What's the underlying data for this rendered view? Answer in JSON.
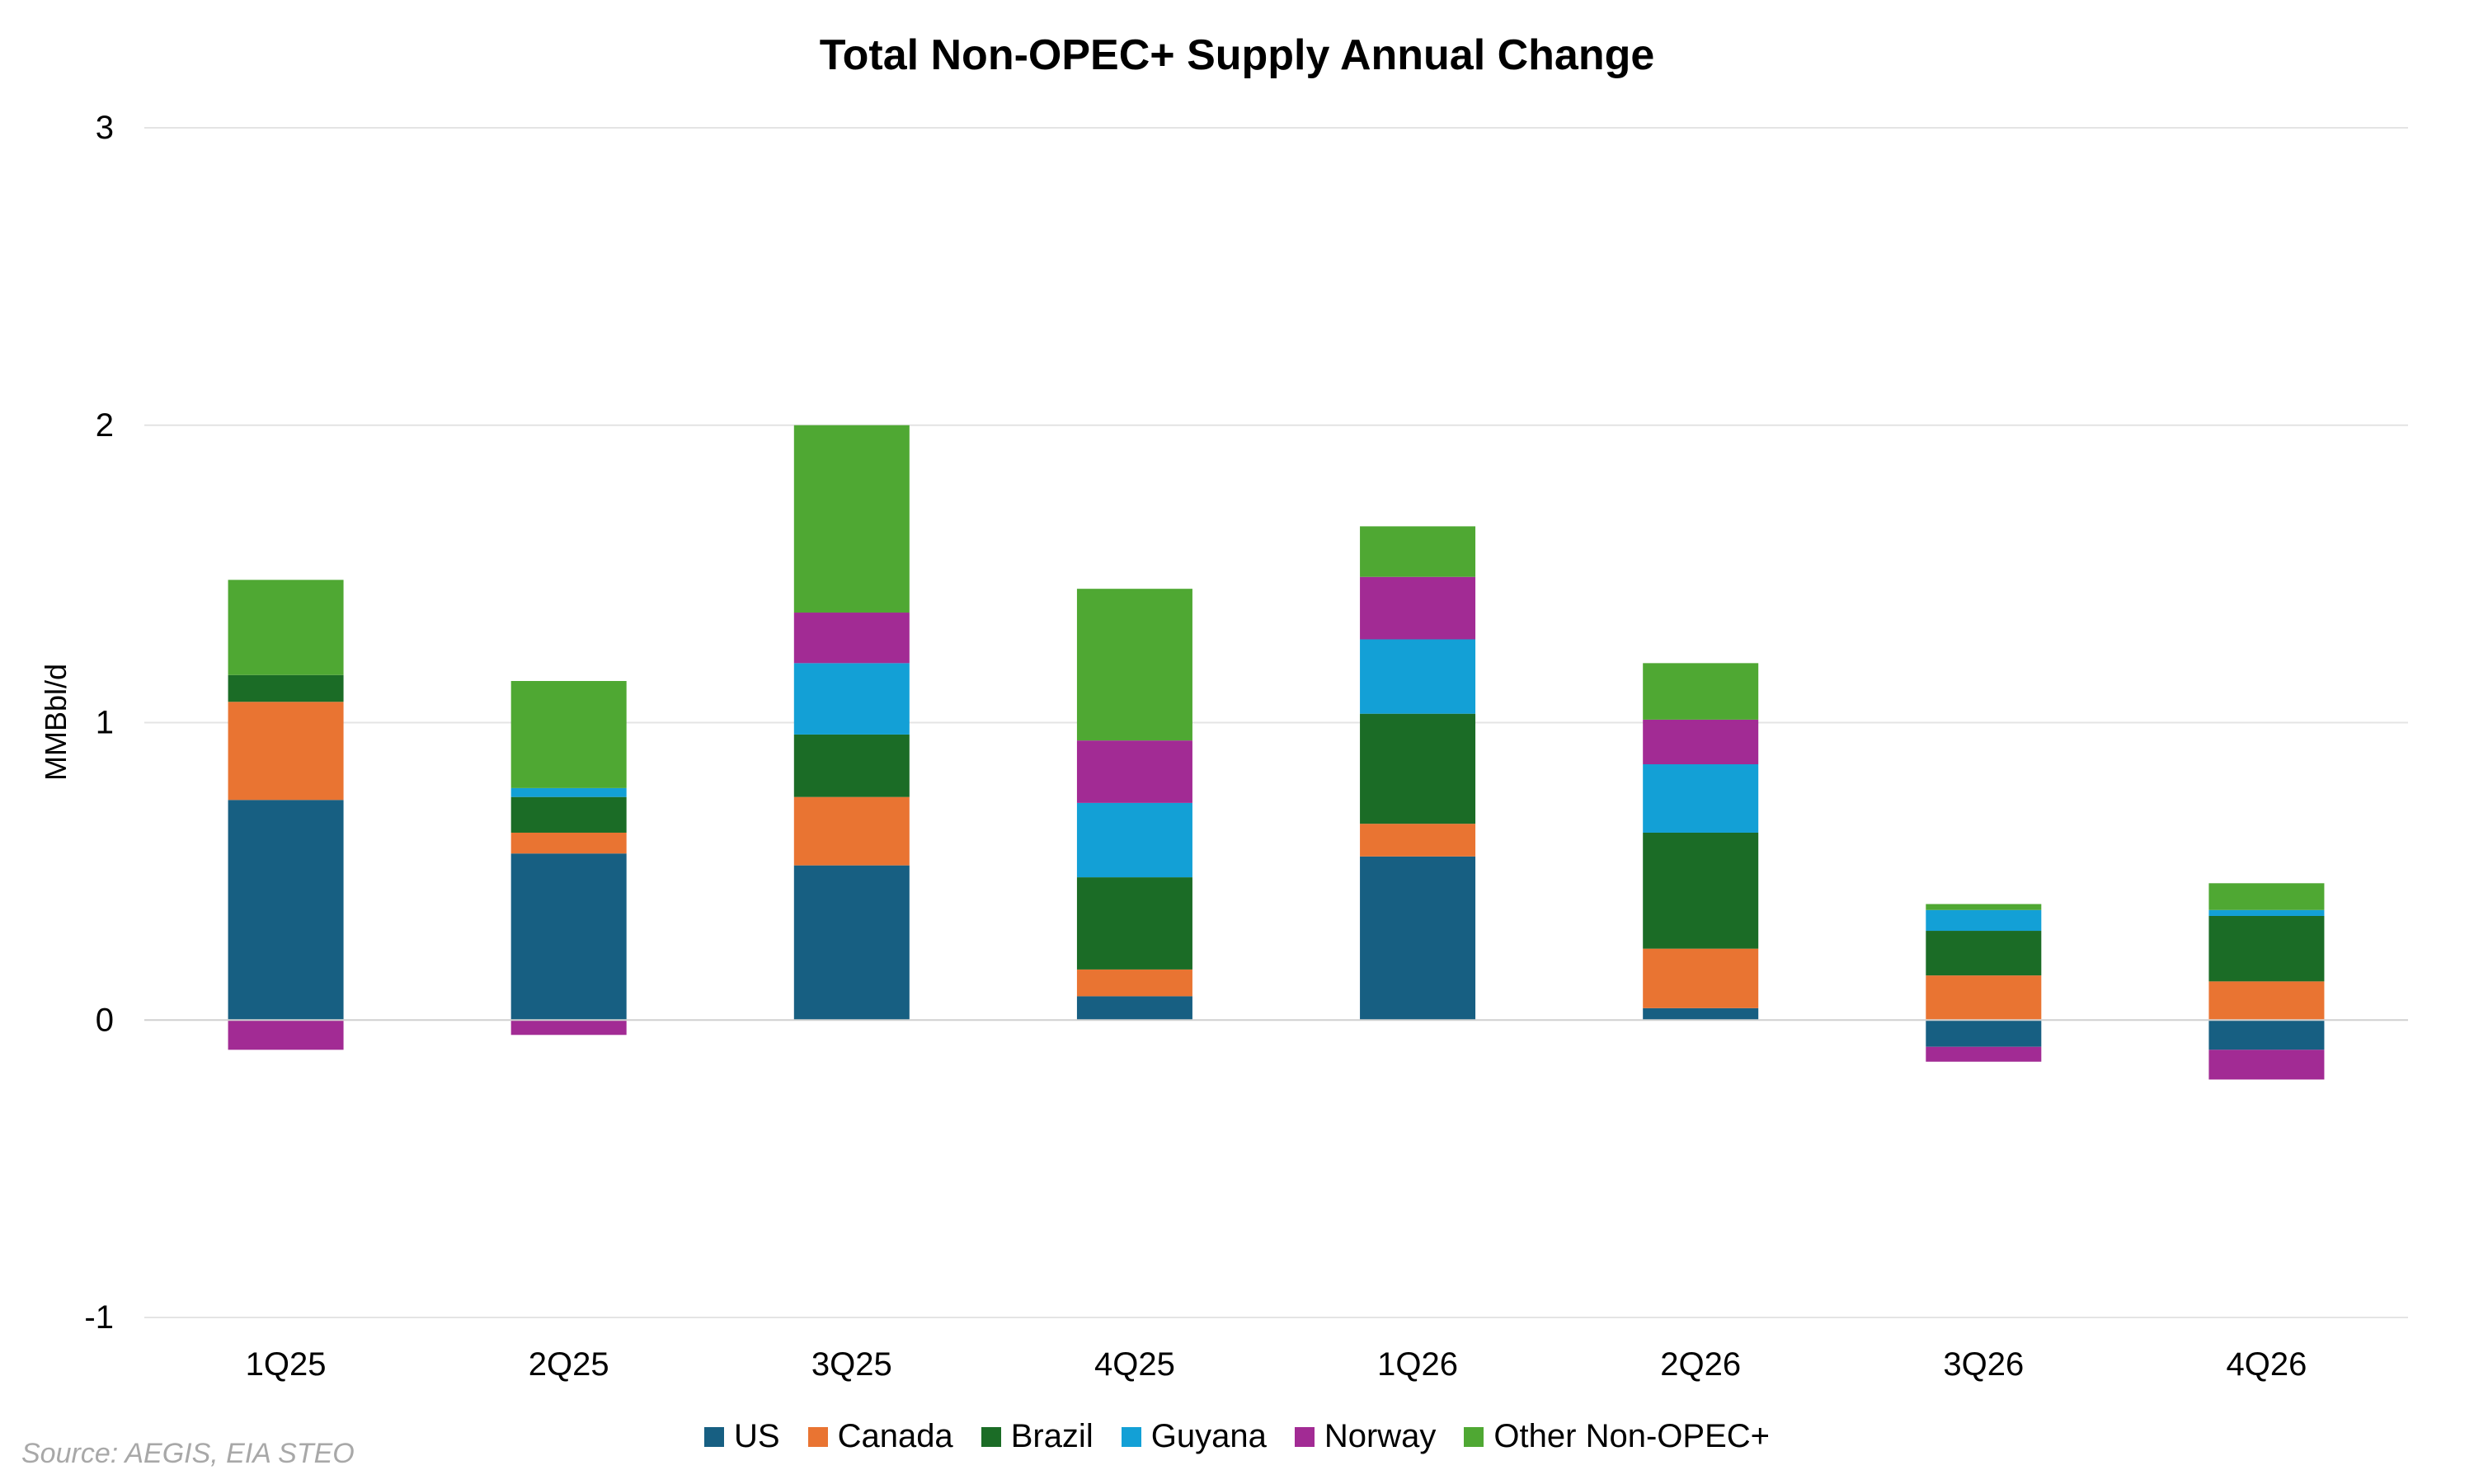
{
  "chart_data": {
    "type": "bar",
    "stacked": true,
    "title": "Total Non-OPEC+ Supply Annual Change",
    "ylabel": "MMBbl/d",
    "xlabel": "",
    "ylim": [
      -1,
      3
    ],
    "yticks": [
      -1,
      0,
      1,
      2,
      3
    ],
    "grid": true,
    "legend_position": "bottom",
    "categories": [
      "1Q25",
      "2Q25",
      "3Q25",
      "4Q25",
      "1Q26",
      "2Q26",
      "3Q26",
      "4Q26"
    ],
    "series": [
      {
        "name": "US",
        "color": "#175f82",
        "values": [
          0.74,
          0.56,
          0.52,
          0.08,
          0.55,
          0.04,
          -0.09,
          -0.1
        ]
      },
      {
        "name": "Canada",
        "color": "#e97432",
        "values": [
          0.33,
          0.07,
          0.23,
          0.09,
          0.11,
          0.2,
          0.15,
          0.13
        ]
      },
      {
        "name": "Brazil",
        "color": "#1b6c26",
        "values": [
          0.09,
          0.12,
          0.21,
          0.31,
          0.37,
          0.39,
          0.15,
          0.22
        ]
      },
      {
        "name": "Guyana",
        "color": "#13a0d6",
        "values": [
          0.0,
          0.03,
          0.24,
          0.25,
          0.25,
          0.23,
          0.07,
          0.02
        ]
      },
      {
        "name": "Norway",
        "color": "#a22b94",
        "values": [
          -0.1,
          -0.05,
          0.17,
          0.21,
          0.21,
          0.15,
          -0.05,
          -0.1
        ]
      },
      {
        "name": "Other Non-OPEC+",
        "color": "#4fa833",
        "values": [
          0.32,
          0.36,
          0.63,
          0.51,
          0.17,
          0.19,
          0.02,
          0.09
        ]
      }
    ]
  },
  "source": "Source: AEGIS, EIA STEO"
}
